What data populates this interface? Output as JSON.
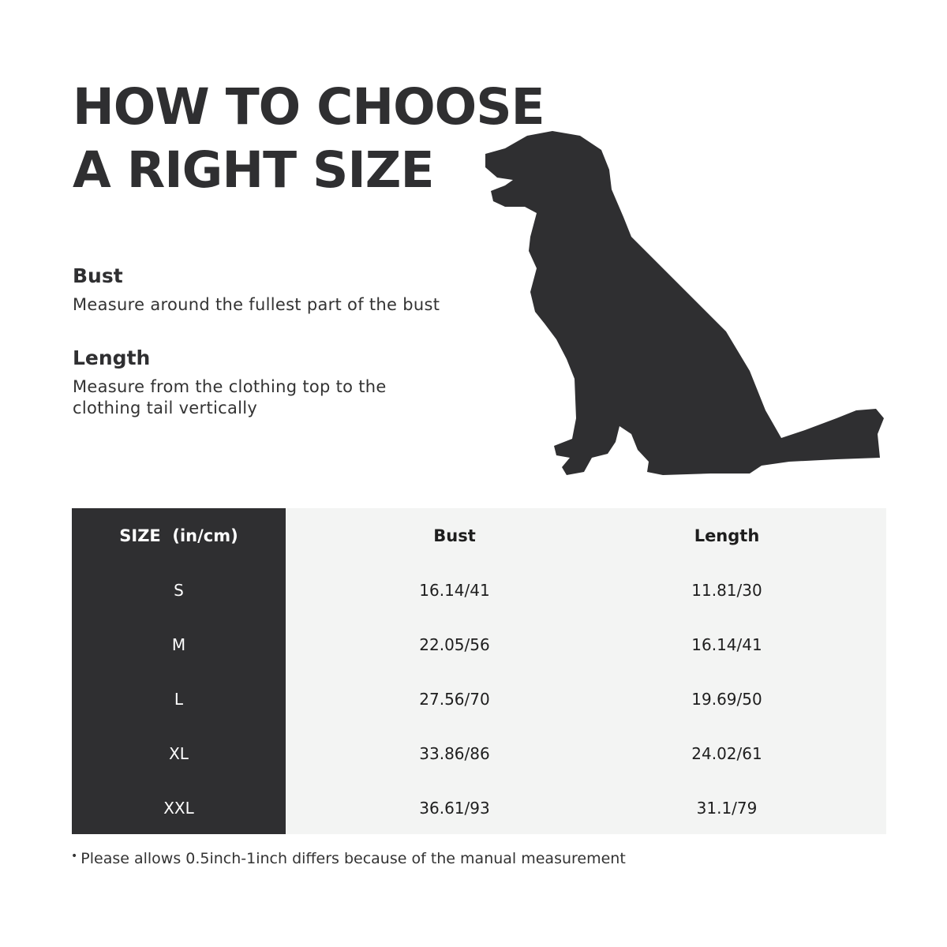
{
  "title_lines": [
    "HOW TO CHOOSE",
    "A RIGHT SIZE"
  ],
  "sections": [
    {
      "heading": "Bust",
      "text": "Measure around the fullest part of the bust"
    },
    {
      "heading": "Length",
      "text_lines": [
        "Measure from the clothing top to the",
        "clothing tail vertically"
      ]
    }
  ],
  "illustration": "dog-silhouette-sitting",
  "colors": {
    "dark": "#2f2f31",
    "table_bg": "#f3f4f3"
  },
  "table": {
    "headers": [
      "SIZE  (in/cm)",
      "Bust",
      "Length"
    ],
    "rows": [
      [
        "S",
        "16.14/41",
        "11.81/30"
      ],
      [
        "M",
        "22.05/56",
        "16.14/41"
      ],
      [
        "L",
        "27.56/70",
        "19.69/50"
      ],
      [
        "XL",
        "33.86/86",
        "24.02/61"
      ],
      [
        "XXL",
        "36.61/93",
        "31.1/79"
      ]
    ]
  },
  "note": {
    "bullet": "•",
    "text": "Please allows 0.5inch-1inch differs because of the manual measurement"
  }
}
